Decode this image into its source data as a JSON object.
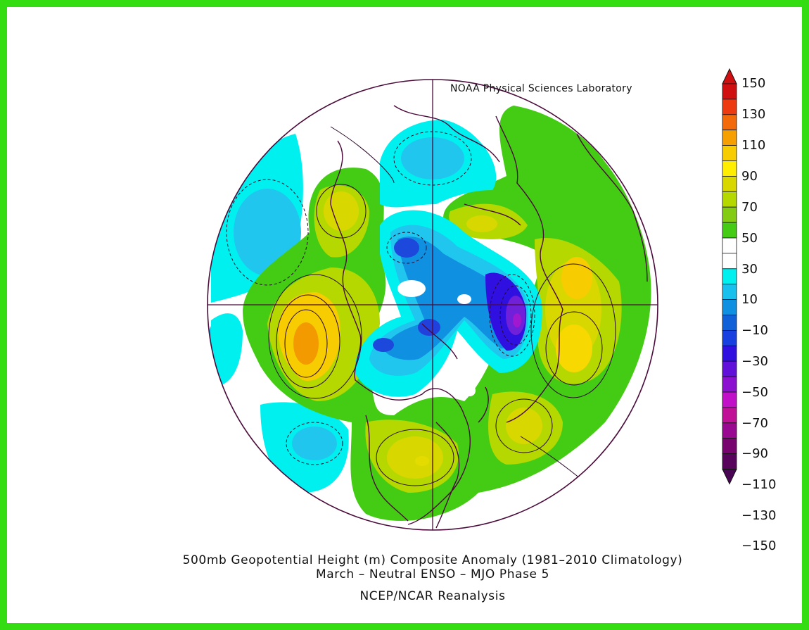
{
  "credit": "NOAA Physical Sciences Laboratory",
  "caption": {
    "line1": "500mb Geopotential Height (m) Composite Anomaly (1981–2010 Climatology)",
    "line2": "March – Neutral ENSO – MJO Phase 5",
    "line3": "NCEP/NCAR Reanalysis"
  },
  "colorbar": {
    "labels": [
      "150",
      "130",
      "110",
      "90",
      "70",
      "50",
      "30",
      "10",
      "−10",
      "−30",
      "−50",
      "−70",
      "−90",
      "−110",
      "−130",
      "−150"
    ],
    "colors": [
      "#d01010",
      "#ee3a10",
      "#f26a0a",
      "#f5a000",
      "#f7cc00",
      "#ffee00",
      "#d8d800",
      "#b4d800",
      "#84cc14",
      "#44cc14",
      "#ffffff",
      "#ffffff",
      "#00f0f0",
      "#18c0ee",
      "#1090e0",
      "#1060d8",
      "#1840e0",
      "#3010e0",
      "#6010d8",
      "#8c10d0",
      "#c010c8",
      "#c01098",
      "#980890",
      "#780470",
      "#58045c"
    ],
    "arrow_top_color": "#d01010",
    "arrow_bottom_color": "#4a0454"
  },
  "anomaly_centers": [
    {
      "value": 110,
      "color": "#f29a00"
    },
    {
      "value": 70,
      "color": "#f7d800"
    },
    {
      "value": 70,
      "color": "#f5d400"
    },
    {
      "value": 50,
      "color": "#e4dc00"
    },
    {
      "value": -90,
      "color": "#7020d8"
    },
    {
      "value": -50,
      "color": "#1c48dc"
    },
    {
      "value": -50,
      "color": "#2240dc"
    },
    {
      "value": -50,
      "color": "#1850d8"
    },
    {
      "value": -30,
      "color": "#1898e6"
    },
    {
      "value": -10,
      "color": "#00eaf0"
    }
  ],
  "colors": {
    "frame": "#33dd11",
    "coastline": "#4a0a3a",
    "outline": "#4a0a3a"
  }
}
